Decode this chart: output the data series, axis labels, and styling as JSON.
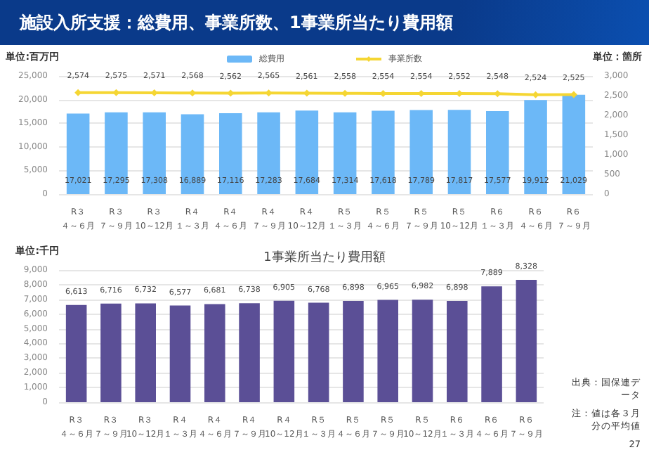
{
  "chart_data": [
    {
      "type": "bar",
      "title": "施設入所支援：総費用、事業所数、1事業所当たり費用額",
      "ylabel": "単位:百万円",
      "y2label": "単位：箇所",
      "categories": [
        "R３４～６月",
        "R３７～９月",
        "R３10～12月",
        "R４１～３月",
        "R４４～６月",
        "R４７～９月",
        "R４10～12月",
        "R５１～３月",
        "R５４～６月",
        "R５７～９月",
        "R５10～12月",
        "R６１～３月",
        "R６４～６月",
        "R６７～９月"
      ],
      "series": [
        {
          "name": "総費用",
          "color": "#6cb8f7",
          "values": [
            17021,
            17295,
            17308,
            16889,
            17116,
            17283,
            17684,
            17314,
            17618,
            17789,
            17817,
            17577,
            19912,
            21029
          ],
          "value_labels": [
            "17,021",
            "17,295",
            "17,308",
            "16,889",
            "17,116",
            "17,283",
            "17,684",
            "17,314",
            "17,618",
            "17,789",
            "17,817",
            "17,577",
            "19,912",
            "21,029"
          ]
        },
        {
          "name": "事業所数",
          "type": "line",
          "axis": "y2",
          "color": "#f5d633",
          "values": [
            2574,
            2575,
            2571,
            2568,
            2562,
            2565,
            2561,
            2558,
            2554,
            2554,
            2552,
            2548,
            2524,
            2525
          ],
          "value_labels": [
            "2,574",
            "2,575",
            "2,571",
            "2,568",
            "2,562",
            "2,565",
            "2,561",
            "2,558",
            "2,554",
            "2,554",
            "2,552",
            "2,548",
            "2,524",
            "2,525"
          ]
        }
      ],
      "ylim": [
        0,
        25000
      ],
      "yticks": [
        0,
        {
          "value": 5000,
          "label": "5,000"
        },
        {
          "value": 10000,
          "label": "10,000"
        },
        {
          "value": 15000,
          "label": "15,000"
        },
        {
          "value": 20000,
          "label": "20,000"
        },
        {
          "value": 25000,
          "label": "25,000"
        }
      ],
      "y2lim": [
        0,
        3000
      ],
      "y2ticks": [
        0,
        500,
        {
          "value": 1000,
          "label": "1,000"
        },
        {
          "value": 1500,
          "label": "1,500"
        },
        {
          "value": 2000,
          "label": "2,000"
        },
        {
          "value": 2500,
          "label": "2,500"
        },
        {
          "value": 3000,
          "label": "3,000"
        }
      ],
      "grid": "y",
      "legend": "top",
      "marker": "diamond"
    },
    {
      "type": "bar",
      "title": "1事業所当たり費用額",
      "ylabel": "単位:千円",
      "categories": [
        "R３４～６月",
        "R３７～９月",
        "R３10～12月",
        "R４１～３月",
        "R４４～６月",
        "R４７～９月",
        "R４10～12月",
        "R５１～３月",
        "R５４～６月",
        "R５７～９月",
        "R５10～12月",
        "R６１～３月",
        "R６４～６月",
        "R６７～９月"
      ],
      "series": [
        {
          "color": "#5b4f96",
          "values": [
            6613,
            6716,
            6732,
            6577,
            6681,
            6738,
            6905,
            6768,
            6898,
            6965,
            6982,
            6898,
            7889,
            8328
          ],
          "value_labels": [
            "6,613",
            "6,716",
            "6,732",
            "6,577",
            "6,681",
            "6,738",
            "6,905",
            "6,768",
            "6,898",
            "6,965",
            "6,982",
            "6,898",
            "7,889",
            "8,328"
          ]
        }
      ],
      "ylim": [
        0,
        9000
      ],
      "yticks": [
        0,
        {
          "value": 1000,
          "label": "1,000"
        },
        {
          "value": 2000,
          "label": "2,000"
        },
        {
          "value": 3000,
          "label": "3,000"
        },
        {
          "value": 4000,
          "label": "4,000"
        },
        {
          "value": 5000,
          "label": "5,000"
        },
        {
          "value": 6000,
          "label": "6,000"
        },
        {
          "value": 7000,
          "label": "7,000"
        },
        {
          "value": 8000,
          "label": "8,000"
        },
        {
          "value": 9000,
          "label": "9,000"
        }
      ],
      "grid": "y",
      "annotations": [
        "出典：国保連データ",
        "注：値は各３月分の平均値",
        "27"
      ]
    }
  ]
}
